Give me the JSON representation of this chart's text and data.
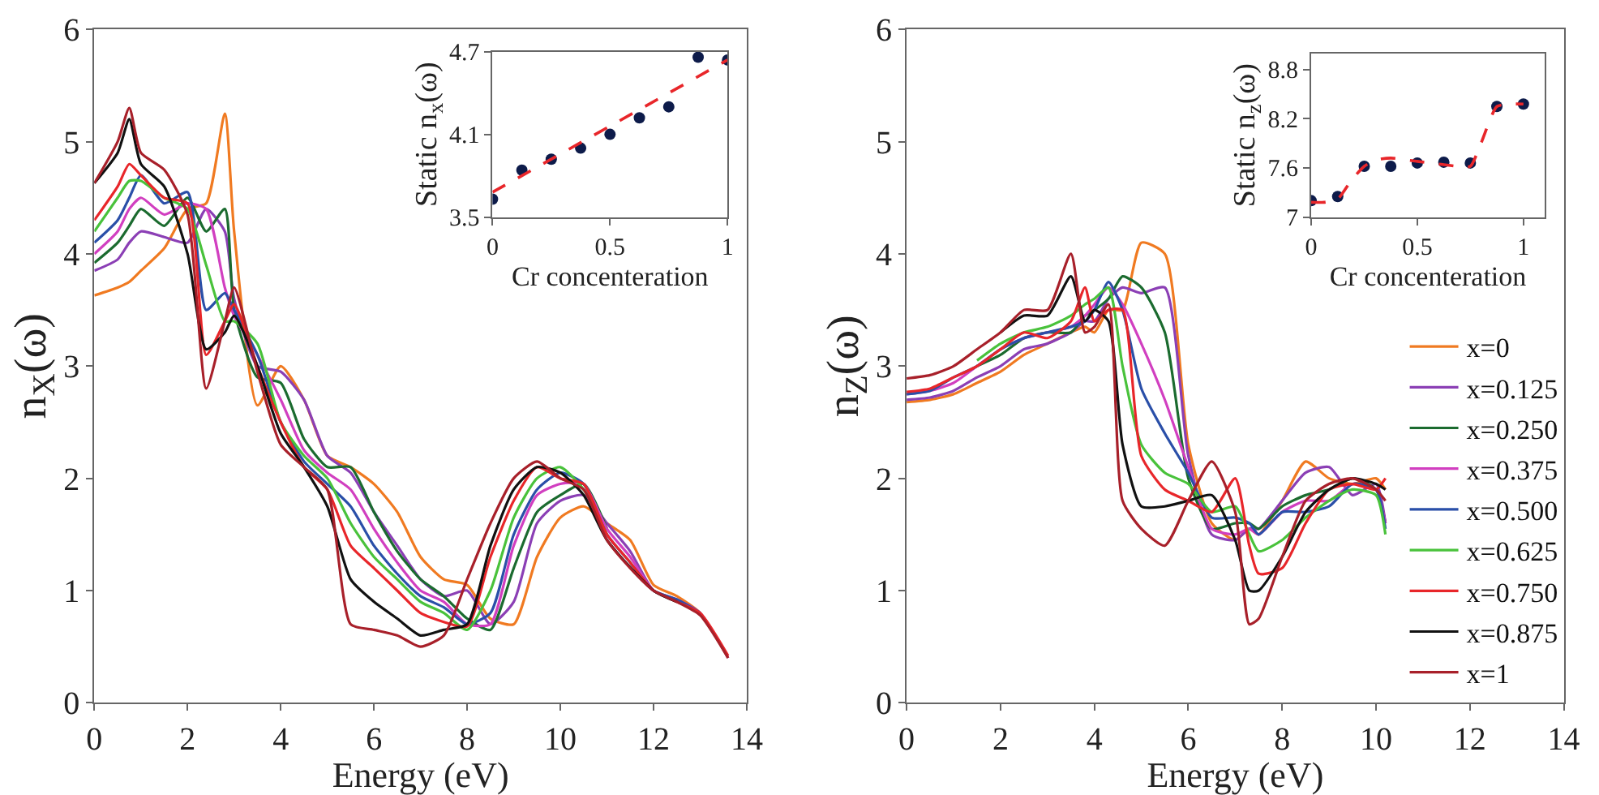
{
  "chart_data": [
    {
      "type": "line",
      "xlabel": "Energy (eV)",
      "ylabel": "n$_{X}$(ω)",
      "xlim": [
        0,
        14
      ],
      "xticks": [
        0,
        2,
        4,
        6,
        8,
        10,
        12,
        14
      ],
      "ylim": [
        0,
        6
      ],
      "yticks": [
        0,
        1,
        2,
        3,
        4,
        5,
        6
      ],
      "legend": false,
      "line_style": "solid",
      "x": [
        0,
        0.5,
        0.75,
        1,
        1.5,
        2,
        2.4,
        2.8,
        3,
        3.5,
        4,
        4.5,
        5,
        5.5,
        6,
        6.5,
        7,
        7.5,
        8,
        8.5,
        9,
        9.5,
        10,
        10.5,
        11,
        11.5,
        12,
        12.5,
        13,
        13.6
      ],
      "series": [
        {
          "color": "#f07a21",
          "values": [
            3.63,
            3.7,
            3.75,
            3.85,
            4.05,
            4.4,
            4.45,
            5.25,
            4.2,
            2.65,
            3.0,
            2.7,
            2.2,
            2.1,
            1.95,
            1.7,
            1.3,
            1.1,
            1.05,
            0.75,
            0.7,
            1.3,
            1.65,
            1.75,
            1.6,
            1.45,
            1.05,
            0.95,
            0.8,
            0.4
          ]
        },
        {
          "color": "#8b3fb5",
          "values": [
            3.85,
            3.95,
            4.1,
            4.2,
            4.15,
            4.1,
            4.4,
            4.2,
            3.6,
            3.0,
            2.95,
            2.7,
            2.2,
            2.05,
            1.7,
            1.4,
            1.1,
            0.95,
            1.0,
            0.7,
            0.9,
            1.6,
            1.8,
            1.85,
            1.6,
            1.35,
            1.0,
            0.92,
            0.8,
            0.4
          ]
        },
        {
          "color": "#1b6b2f",
          "values": [
            3.92,
            4.1,
            4.25,
            4.4,
            4.25,
            4.5,
            4.2,
            4.4,
            3.5,
            2.9,
            2.85,
            2.35,
            2.1,
            2.1,
            1.7,
            1.35,
            1.1,
            0.95,
            0.75,
            0.65,
            1.2,
            1.7,
            1.85,
            1.95,
            1.55,
            null,
            null,
            null,
            null,
            null
          ]
        },
        {
          "color": "#d13fc0",
          "values": [
            4.0,
            4.2,
            4.4,
            4.5,
            4.35,
            4.45,
            4.4,
            3.7,
            3.45,
            3.1,
            2.7,
            2.25,
            2.05,
            1.9,
            1.55,
            1.25,
            1.0,
            0.9,
            0.7,
            0.7,
            1.4,
            1.85,
            1.95,
            1.95,
            1.55,
            1.3,
            1.0,
            0.92,
            null,
            null
          ]
        },
        {
          "color": "#2a4fa8",
          "values": [
            4.1,
            4.3,
            4.5,
            4.7,
            4.45,
            4.55,
            3.5,
            3.65,
            3.5,
            3.1,
            2.5,
            2.15,
            1.95,
            1.75,
            1.4,
            1.15,
            0.95,
            0.85,
            0.7,
            0.8,
            1.5,
            1.9,
            2.05,
            1.95,
            1.5,
            1.25,
            1.0,
            0.92,
            0.8,
            null
          ]
        },
        {
          "color": "#49c23b",
          "values": [
            4.2,
            4.5,
            4.65,
            4.65,
            4.5,
            4.4,
            3.9,
            3.4,
            3.4,
            3.2,
            2.5,
            2.2,
            2.0,
            1.6,
            1.3,
            1.1,
            0.9,
            0.8,
            0.65,
            1.0,
            1.65,
            2.0,
            2.1,
            1.9,
            1.5,
            null,
            null,
            null,
            null,
            null
          ]
        },
        {
          "color": "#e8262a",
          "values": [
            4.3,
            4.6,
            4.8,
            4.7,
            4.5,
            4.45,
            3.1,
            3.4,
            3.55,
            3.0,
            2.5,
            2.1,
            1.9,
            1.4,
            1.2,
            1.0,
            0.8,
            0.72,
            0.68,
            1.3,
            1.8,
            2.1,
            2.0,
            1.95,
            1.5,
            1.25,
            1.0,
            0.9,
            0.8,
            0.42
          ]
        },
        {
          "color": "#111111",
          "values": [
            4.63,
            4.9,
            5.2,
            4.8,
            4.6,
            4.0,
            3.15,
            3.3,
            3.45,
            3.0,
            2.4,
            2.1,
            1.75,
            1.1,
            0.9,
            0.75,
            0.6,
            0.65,
            0.7,
            1.4,
            1.9,
            2.1,
            2.05,
            1.85,
            1.45,
            null,
            1.0,
            0.9,
            null,
            null
          ]
        },
        {
          "color": "#a8202a",
          "values": [
            4.63,
            5.0,
            5.3,
            4.9,
            4.75,
            4.35,
            2.8,
            3.4,
            3.7,
            2.95,
            2.3,
            2.1,
            1.9,
            0.7,
            0.65,
            0.6,
            0.5,
            0.6,
            1.1,
            1.6,
            2.0,
            2.15,
            2.0,
            1.9,
            1.45,
            1.2,
            1.0,
            0.9,
            0.78,
            0.4
          ]
        }
      ]
    },
    {
      "type": "scatter",
      "xlabel": "Cr concenteration",
      "ylabel": "Static n$_{x}$(ω)",
      "xlim": [
        0,
        1
      ],
      "xticks": [
        0,
        0.5,
        1
      ],
      "ylim": [
        3.5,
        4.7
      ],
      "yticks": [
        3.5,
        4.1,
        4.7
      ],
      "x": [
        0,
        0.125,
        0.25,
        0.375,
        0.5,
        0.625,
        0.75,
        0.875,
        1
      ],
      "series": [
        {
          "color": "#0d1b4a",
          "marker": "circle",
          "values": [
            3.63,
            3.84,
            3.92,
            4.0,
            4.1,
            4.22,
            4.3,
            4.66,
            4.64
          ]
        },
        {
          "type": "line",
          "line_style": "dashed",
          "color": "#e8262a",
          "x": [
            0,
            1
          ],
          "values": [
            3.68,
            4.64
          ]
        }
      ]
    },
    {
      "type": "line",
      "xlabel": "Energy (eV)",
      "ylabel": "n$_{Z}$(ω)",
      "xlim": [
        0,
        14
      ],
      "xticks": [
        0,
        2,
        4,
        6,
        8,
        10,
        12,
        14
      ],
      "ylim": [
        0,
        6
      ],
      "yticks": [
        0,
        1,
        2,
        3,
        4,
        5,
        6
      ],
      "legend": "right",
      "line_style": "solid",
      "x": [
        0,
        0.5,
        1,
        1.5,
        2,
        2.5,
        3,
        3.5,
        3.8,
        4,
        4.3,
        4.6,
        5,
        5.5,
        6,
        6.5,
        7,
        7.3,
        7.5,
        8,
        8.5,
        9,
        9.5,
        10,
        10.2
      ],
      "series": [
        {
          "name": "x=0",
          "color": "#f07a21",
          "values": [
            2.68,
            2.7,
            2.75,
            2.85,
            2.95,
            3.1,
            3.2,
            3.3,
            3.35,
            3.3,
            3.5,
            3.5,
            4.1,
            4.0,
            2.3,
            1.6,
            1.45,
            1.55,
            1.5,
            1.8,
            2.15,
            2.0,
            1.95,
            2.0,
            1.9
          ]
        },
        {
          "name": "x=0.125",
          "color": "#8b3fb5",
          "values": [
            2.7,
            2.72,
            2.78,
            2.9,
            3.0,
            3.15,
            3.2,
            3.3,
            3.4,
            3.4,
            3.6,
            3.7,
            3.65,
            3.7,
            2.2,
            1.5,
            1.45,
            1.55,
            1.55,
            1.8,
            2.05,
            2.1,
            1.85,
            1.95,
            1.6
          ]
        },
        {
          "name": "x=0.250",
          "color": "#1b6b2f",
          "values": [
            null,
            null,
            null,
            3.0,
            3.1,
            3.25,
            3.3,
            3.3,
            3.45,
            3.5,
            3.6,
            3.8,
            3.7,
            3.3,
            2.0,
            1.55,
            1.6,
            1.6,
            1.55,
            1.75,
            1.85,
            1.9,
            2.0,
            1.9,
            1.6
          ]
        },
        {
          "name": "x=0.375",
          "color": "#d13fc0",
          "values": [
            2.75,
            2.78,
            2.85,
            3.0,
            3.15,
            3.25,
            3.3,
            3.35,
            3.45,
            3.55,
            3.7,
            3.55,
            3.2,
            2.7,
            2.1,
            1.55,
            1.5,
            1.55,
            1.5,
            1.7,
            1.8,
            1.8,
            1.95,
            1.9,
            1.6
          ]
        },
        {
          "name": "x=0.500",
          "color": "#2a4fa8",
          "values": [
            2.75,
            2.78,
            2.9,
            3.0,
            3.15,
            3.25,
            3.3,
            3.35,
            3.4,
            3.5,
            3.75,
            3.5,
            2.8,
            2.4,
            2.05,
            1.65,
            1.65,
            1.6,
            1.5,
            1.7,
            1.7,
            1.75,
            1.95,
            1.9,
            1.55
          ]
        },
        {
          "name": "x=0.625",
          "color": "#49c23b",
          "values": [
            null,
            null,
            null,
            3.05,
            3.2,
            3.3,
            3.35,
            3.45,
            3.55,
            3.6,
            3.7,
            3.0,
            2.3,
            2.05,
            1.95,
            1.7,
            1.75,
            1.5,
            1.35,
            1.45,
            1.65,
            1.8,
            1.9,
            1.85,
            1.5
          ]
        },
        {
          "name": "x=0.750",
          "color": "#e8262a",
          "values": [
            2.77,
            2.8,
            2.9,
            3.0,
            3.15,
            3.3,
            3.25,
            3.4,
            3.7,
            3.4,
            3.5,
            3.5,
            2.2,
            1.9,
            1.8,
            1.7,
            2.0,
            1.4,
            1.15,
            1.2,
            1.6,
            1.9,
            1.95,
            1.9,
            2.0
          ]
        },
        {
          "name": "x=0.875",
          "color": "#111111",
          "values": [
            null,
            null,
            null,
            null,
            3.3,
            3.45,
            3.45,
            3.8,
            3.4,
            3.5,
            3.4,
            2.3,
            1.75,
            1.75,
            1.8,
            1.85,
            1.45,
            1.0,
            1.0,
            1.3,
            1.7,
            1.9,
            2.0,
            1.95,
            1.9
          ]
        },
        {
          "name": "x=1",
          "color": "#a8202a",
          "values": [
            2.89,
            2.92,
            3.0,
            3.15,
            3.3,
            3.5,
            3.5,
            4.0,
            3.3,
            3.35,
            3.55,
            1.8,
            1.55,
            1.4,
            1.8,
            2.15,
            1.7,
            0.7,
            0.75,
            1.3,
            1.8,
            1.95,
            2.0,
            1.9,
            1.8
          ]
        }
      ]
    },
    {
      "type": "scatter",
      "xlabel": "Cr concenteration",
      "ylabel": "Static n$_{z}$(ω)",
      "xlim": [
        0,
        1.1
      ],
      "xticks": [
        0,
        0.5,
        1
      ],
      "ylim": [
        7,
        9
      ],
      "yticks": [
        7,
        7.6,
        8.2,
        8.8
      ],
      "x": [
        0,
        0.125,
        0.25,
        0.375,
        0.5,
        0.625,
        0.75,
        0.875,
        1
      ],
      "series": [
        {
          "color": "#0d1b4a",
          "marker": "circle",
          "values": [
            7.2,
            7.25,
            7.62,
            7.62,
            7.66,
            7.67,
            7.66,
            8.35,
            8.38
          ]
        },
        {
          "type": "line",
          "line_style": "dashed",
          "color": "#e8262a",
          "x": [
            0,
            0.06,
            0.125,
            0.19,
            0.25,
            0.31,
            0.375,
            0.5,
            0.625,
            0.69,
            0.75,
            0.8,
            0.875,
            0.94,
            1
          ],
          "values": [
            7.18,
            7.18,
            7.22,
            7.45,
            7.62,
            7.7,
            7.72,
            7.68,
            7.64,
            7.62,
            7.62,
            7.9,
            8.35,
            8.38,
            8.38
          ]
        }
      ]
    }
  ]
}
